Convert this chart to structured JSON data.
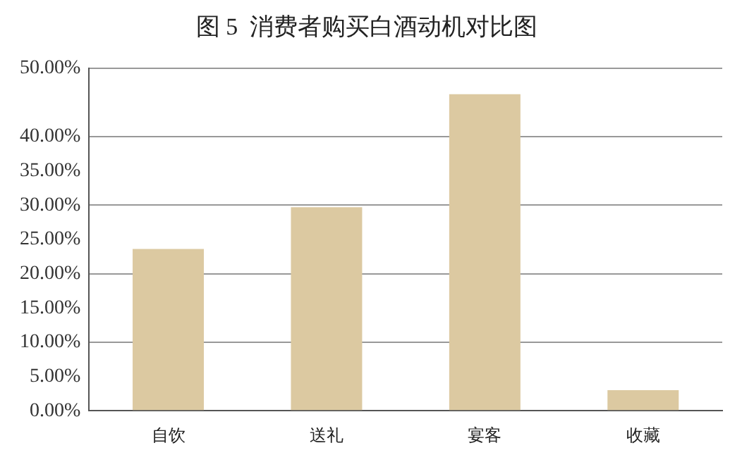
{
  "chart_data": {
    "type": "bar",
    "title": "图 5  消费者购买白酒动机对比图",
    "categories": [
      "自饮",
      "送礼",
      "宴客",
      "收藏"
    ],
    "values": [
      23.6,
      29.7,
      46.2,
      3.0
    ],
    "color": "#dcc9a1",
    "ylim": [
      0,
      50
    ],
    "yticks": [
      {
        "value": 0,
        "label": "0.00%"
      },
      {
        "value": 5,
        "label": "5.00%"
      },
      {
        "value": 10,
        "label": "10.00%"
      },
      {
        "value": 15,
        "label": "15.00%"
      },
      {
        "value": 20,
        "label": "20.00%"
      },
      {
        "value": 25,
        "label": "25.00%"
      },
      {
        "value": 30,
        "label": "30.00%"
      },
      {
        "value": 35,
        "label": "35.00%"
      },
      {
        "value": 40,
        "label": "40.00%"
      },
      {
        "value": 50,
        "label": "50.00%"
      }
    ],
    "grid": "y"
  }
}
